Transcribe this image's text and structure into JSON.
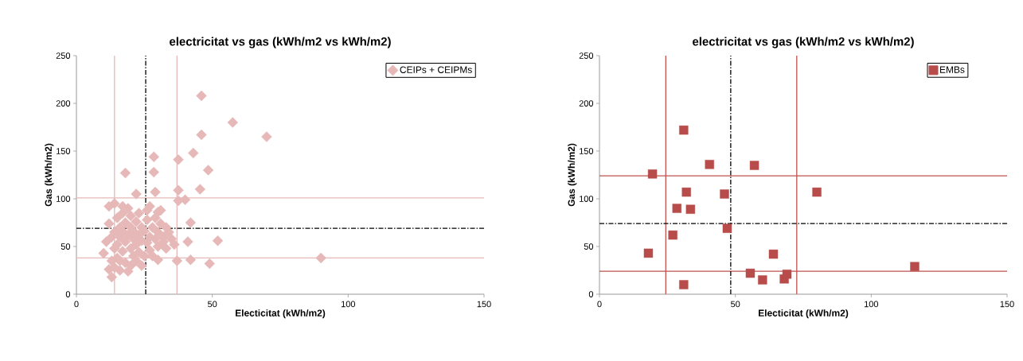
{
  "chart_data": [
    {
      "type": "scatter",
      "title": "electricitat vs gas (kWh/m2 vs kWh/m2)",
      "xlabel": "Electicitat (kWh/m2)",
      "ylabel": "Gas (kWh/m2)",
      "xlim": [
        0,
        150
      ],
      "xticks": [
        0,
        50,
        100,
        150
      ],
      "ylim": [
        0,
        250
      ],
      "yticks": [
        0,
        50,
        100,
        150,
        200,
        250
      ],
      "legend": "top right",
      "marker": "diamond",
      "series": [
        {
          "name": "CEIPs + CEIPMs",
          "color": "#e6b8b7",
          "x": [
            46,
            57.5,
            70,
            46,
            43,
            28.5,
            37.5,
            48.5,
            28.5,
            18,
            45.5,
            37.5,
            29,
            22,
            40,
            37.5,
            42,
            52,
            41,
            90,
            49,
            42,
            30,
            37,
            14,
            12,
            17,
            10,
            11,
            12,
            12,
            13,
            13,
            13,
            14,
            14,
            14,
            15,
            15,
            15,
            16,
            16,
            16,
            17,
            17,
            17,
            18,
            18,
            18,
            19,
            19,
            19,
            20,
            20,
            20,
            21,
            21,
            21,
            22,
            22,
            22,
            23,
            23,
            23,
            24,
            24,
            25,
            25,
            26,
            26,
            26,
            27,
            27,
            28,
            28,
            29,
            29,
            30,
            30,
            31,
            31,
            32,
            32,
            33,
            34,
            35,
            36,
            24,
            20,
            16,
            27,
            30,
            33
          ],
          "values": [
            208,
            180,
            165,
            167,
            148,
            144,
            141,
            130,
            128,
            127,
            110,
            109,
            107,
            105,
            99,
            98,
            75,
            56,
            55,
            38,
            32,
            36,
            36,
            35,
            95,
            92,
            92,
            43,
            55,
            26,
            74,
            18,
            60,
            35,
            28,
            65,
            48,
            80,
            52,
            38,
            70,
            60,
            25,
            85,
            45,
            66,
            55,
            75,
            33,
            24,
            62,
            90,
            48,
            70,
            82,
            40,
            58,
            66,
            35,
            76,
            52,
            62,
            44,
            85,
            56,
            70,
            40,
            66,
            78,
            54,
            88,
            60,
            46,
            70,
            40,
            80,
            58,
            65,
            50,
            74,
            88,
            60,
            55,
            70,
            65,
            58,
            52,
            30,
            30,
            35,
            92,
            86,
            48
          ]
        }
      ],
      "ref_lines": [
        {
          "axis": "x",
          "value": 14,
          "color": "#e6b8b7",
          "line_style": "solid"
        },
        {
          "axis": "x",
          "value": 37,
          "color": "#e6b8b7",
          "line_style": "solid"
        },
        {
          "axis": "y",
          "value": 101,
          "color": "#e6b8b7",
          "line_style": "solid"
        },
        {
          "axis": "y",
          "value": 38,
          "color": "#e6b8b7",
          "line_style": "solid"
        },
        {
          "axis": "x",
          "value": 25.5,
          "color": "#000000",
          "line_style": "dashdot"
        },
        {
          "axis": "y",
          "value": 69,
          "color": "#000000",
          "line_style": "dashdot"
        }
      ]
    },
    {
      "type": "scatter",
      "title": "electricitat vs gas (kWh/m2 vs kWh/m2)",
      "xlabel": "Electicitat (kWh/m2)",
      "ylabel": "Gas (kWh/m2)",
      "xlim": [
        0,
        150
      ],
      "xticks": [
        0,
        50,
        100,
        150
      ],
      "ylim": [
        0,
        250
      ],
      "yticks": [
        0,
        50,
        100,
        150,
        200,
        250
      ],
      "legend": "top right",
      "marker": "square",
      "series": [
        {
          "name": "EMBs",
          "color": "#b84c4a",
          "x": [
            18,
            19.5,
            27,
            28.5,
            31,
            31,
            32,
            33.5,
            40.5,
            46,
            47,
            55.5,
            57,
            60,
            64,
            68,
            69,
            80,
            116
          ],
          "values": [
            43,
            126,
            62,
            90,
            172,
            10,
            107,
            89,
            136,
            105,
            69,
            22,
            135,
            15,
            42,
            16,
            21,
            107,
            29
          ]
        }
      ],
      "ref_lines": [
        {
          "axis": "x",
          "value": 24.4,
          "color": "#c0504d",
          "line_style": "solid"
        },
        {
          "axis": "x",
          "value": 72.6,
          "color": "#c0504d",
          "line_style": "solid"
        },
        {
          "axis": "y",
          "value": 124,
          "color": "#c0504d",
          "line_style": "solid"
        },
        {
          "axis": "y",
          "value": 24,
          "color": "#c0504d",
          "line_style": "solid"
        },
        {
          "axis": "x",
          "value": 48.3,
          "color": "#000000",
          "line_style": "dashdot"
        },
        {
          "axis": "y",
          "value": 74,
          "color": "#000000",
          "line_style": "dashdot"
        }
      ]
    }
  ]
}
